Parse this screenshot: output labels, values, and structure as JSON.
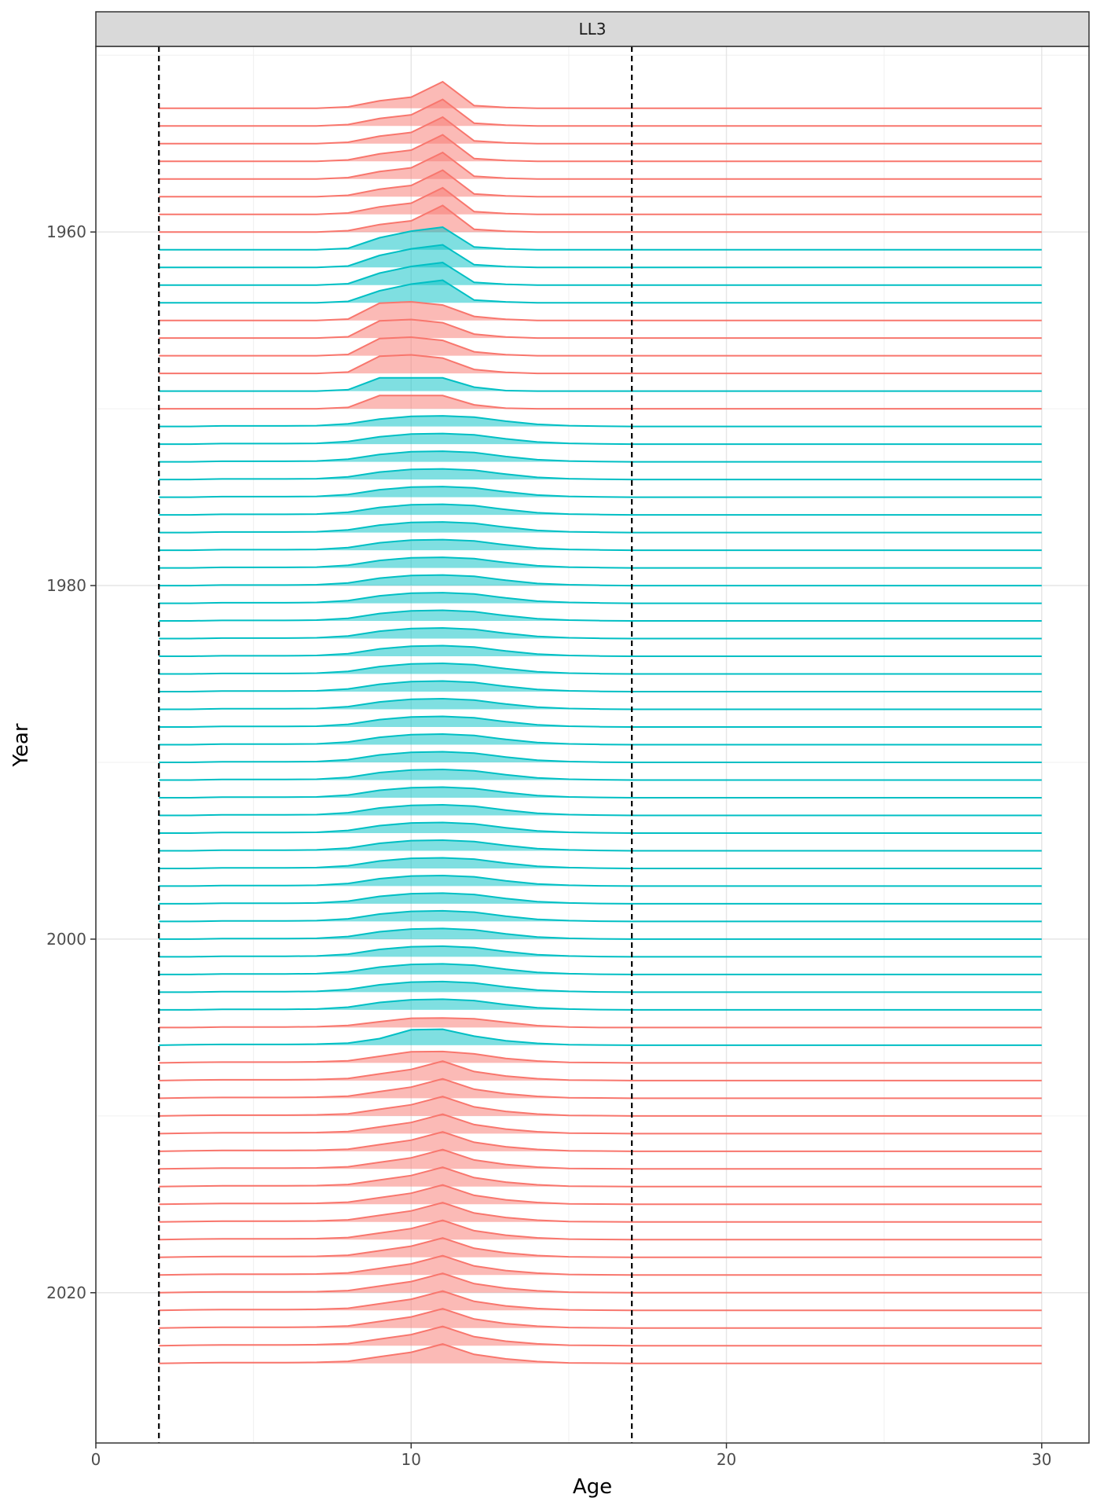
{
  "chart_data": {
    "type": "area",
    "facet_label": "LL3",
    "xlabel": "Age",
    "ylabel": "Year",
    "xlim": [
      0,
      31.5
    ],
    "ylim": [
      1949.5,
      2028.5
    ],
    "x_ticks": [
      "0",
      "10",
      "20",
      "30"
    ],
    "y_ticks": [
      "1960",
      "1980",
      "2000",
      "2020"
    ],
    "reference_lines_x": [
      2,
      17
    ],
    "grid": true,
    "legend": "none",
    "colors": {
      "red": "#F8766D",
      "cyan": "#00BFC4"
    },
    "ages": [
      2,
      3,
      4,
      5,
      6,
      7,
      8,
      9,
      10,
      11,
      12,
      13,
      14,
      15,
      16,
      17,
      18,
      19,
      20,
      21,
      22,
      23,
      24,
      25,
      26,
      27,
      28,
      29,
      30
    ],
    "ridge_scale_years": 1.5,
    "profiles": {
      "A": [
        0,
        0,
        0,
        0,
        0,
        0,
        0.05,
        0.28,
        0.42,
        1.0,
        0.1,
        0.03,
        0,
        0,
        0,
        0,
        0,
        0,
        0,
        0,
        0,
        0,
        0,
        0,
        0,
        0,
        0,
        0,
        0
      ],
      "B": [
        0,
        0,
        0,
        0,
        0,
        0,
        0.05,
        0.45,
        0.7,
        0.85,
        0.1,
        0.03,
        0,
        0,
        0,
        0,
        0,
        0,
        0,
        0,
        0,
        0,
        0,
        0,
        0,
        0,
        0,
        0,
        0
      ],
      "C": [
        0,
        0,
        0,
        0,
        0,
        0,
        0.05,
        0.65,
        0.7,
        0.58,
        0.15,
        0.04,
        0,
        0,
        0,
        0,
        0,
        0,
        0,
        0,
        0,
        0,
        0,
        0,
        0,
        0,
        0,
        0,
        0
      ],
      "D": [
        0,
        0,
        0,
        0,
        0,
        0,
        0.05,
        0.5,
        0.5,
        0.5,
        0.15,
        0.02,
        0,
        0,
        0,
        0,
        0,
        0,
        0,
        0,
        0,
        0,
        0,
        0,
        0,
        0,
        0,
        0,
        0
      ],
      "E": [
        0,
        0,
        0.02,
        0.02,
        0.02,
        0.03,
        0.1,
        0.28,
        0.38,
        0.4,
        0.35,
        0.2,
        0.08,
        0.03,
        0.01,
        0,
        0,
        0,
        0,
        0,
        0,
        0,
        0,
        0,
        0,
        0,
        0,
        0,
        0
      ],
      "F": [
        0,
        0,
        0.02,
        0.02,
        0.02,
        0.03,
        0.08,
        0.22,
        0.35,
        0.36,
        0.33,
        0.2,
        0.07,
        0.02,
        0,
        0,
        0,
        0,
        0,
        0,
        0,
        0,
        0,
        0,
        0,
        0,
        0,
        0,
        0
      ],
      "G": [
        0,
        0.02,
        0.03,
        0.03,
        0.03,
        0.04,
        0.08,
        0.25,
        0.58,
        0.6,
        0.34,
        0.17,
        0.07,
        0.02,
        0.01,
        0,
        0,
        0,
        0,
        0,
        0,
        0,
        0,
        0,
        0,
        0,
        0,
        0,
        0
      ],
      "H": [
        0,
        0.02,
        0.03,
        0.03,
        0.03,
        0.04,
        0.08,
        0.25,
        0.42,
        0.43,
        0.34,
        0.17,
        0.07,
        0.02,
        0.01,
        0,
        0,
        0,
        0,
        0,
        0,
        0,
        0,
        0,
        0,
        0,
        0,
        0,
        0
      ],
      "I": [
        0,
        0.02,
        0.03,
        0.03,
        0.03,
        0.04,
        0.08,
        0.25,
        0.42,
        0.73,
        0.34,
        0.17,
        0.07,
        0.02,
        0.01,
        0,
        0,
        0,
        0,
        0,
        0,
        0,
        0,
        0,
        0,
        0,
        0,
        0,
        0
      ]
    },
    "series": [
      {
        "year": 1953,
        "color": "red",
        "profile": "A"
      },
      {
        "year": 1954,
        "color": "red",
        "profile": "A"
      },
      {
        "year": 1955,
        "color": "red",
        "profile": "A"
      },
      {
        "year": 1956,
        "color": "red",
        "profile": "A"
      },
      {
        "year": 1957,
        "color": "red",
        "profile": "A"
      },
      {
        "year": 1958,
        "color": "red",
        "profile": "A"
      },
      {
        "year": 1959,
        "color": "red",
        "profile": "A"
      },
      {
        "year": 1960,
        "color": "red",
        "profile": "A"
      },
      {
        "year": 1961,
        "color": "cyan",
        "profile": "B"
      },
      {
        "year": 1962,
        "color": "cyan",
        "profile": "B"
      },
      {
        "year": 1963,
        "color": "cyan",
        "profile": "B"
      },
      {
        "year": 1964,
        "color": "cyan",
        "profile": "B"
      },
      {
        "year": 1965,
        "color": "red",
        "profile": "C"
      },
      {
        "year": 1966,
        "color": "red",
        "profile": "C"
      },
      {
        "year": 1967,
        "color": "red",
        "profile": "C"
      },
      {
        "year": 1968,
        "color": "red",
        "profile": "C"
      },
      {
        "year": 1969,
        "color": "cyan",
        "profile": "D"
      },
      {
        "year": 1970,
        "color": "red",
        "profile": "D"
      },
      {
        "year": 1971,
        "color": "cyan",
        "profile": "E"
      },
      {
        "year": 1972,
        "color": "cyan",
        "profile": "E"
      },
      {
        "year": 1973,
        "color": "cyan",
        "profile": "E"
      },
      {
        "year": 1974,
        "color": "cyan",
        "profile": "E"
      },
      {
        "year": 1975,
        "color": "cyan",
        "profile": "E"
      },
      {
        "year": 1976,
        "color": "cyan",
        "profile": "E"
      },
      {
        "year": 1977,
        "color": "cyan",
        "profile": "E"
      },
      {
        "year": 1978,
        "color": "cyan",
        "profile": "E"
      },
      {
        "year": 1979,
        "color": "cyan",
        "profile": "E"
      },
      {
        "year": 1980,
        "color": "cyan",
        "profile": "E"
      },
      {
        "year": 1981,
        "color": "cyan",
        "profile": "E"
      },
      {
        "year": 1982,
        "color": "cyan",
        "profile": "E"
      },
      {
        "year": 1983,
        "color": "cyan",
        "profile": "E"
      },
      {
        "year": 1984,
        "color": "cyan",
        "profile": "E"
      },
      {
        "year": 1985,
        "color": "cyan",
        "profile": "E"
      },
      {
        "year": 1986,
        "color": "cyan",
        "profile": "E"
      },
      {
        "year": 1987,
        "color": "cyan",
        "profile": "E"
      },
      {
        "year": 1988,
        "color": "cyan",
        "profile": "E"
      },
      {
        "year": 1989,
        "color": "cyan",
        "profile": "E"
      },
      {
        "year": 1990,
        "color": "cyan",
        "profile": "E"
      },
      {
        "year": 1991,
        "color": "cyan",
        "profile": "E"
      },
      {
        "year": 1992,
        "color": "cyan",
        "profile": "E"
      },
      {
        "year": 1993,
        "color": "cyan",
        "profile": "E"
      },
      {
        "year": 1994,
        "color": "cyan",
        "profile": "E"
      },
      {
        "year": 1995,
        "color": "cyan",
        "profile": "E"
      },
      {
        "year": 1996,
        "color": "cyan",
        "profile": "E"
      },
      {
        "year": 1997,
        "color": "cyan",
        "profile": "E"
      },
      {
        "year": 1998,
        "color": "cyan",
        "profile": "E"
      },
      {
        "year": 1999,
        "color": "cyan",
        "profile": "E"
      },
      {
        "year": 2000,
        "color": "cyan",
        "profile": "E"
      },
      {
        "year": 2001,
        "color": "cyan",
        "profile": "E"
      },
      {
        "year": 2002,
        "color": "cyan",
        "profile": "E"
      },
      {
        "year": 2003,
        "color": "cyan",
        "profile": "E"
      },
      {
        "year": 2004,
        "color": "cyan",
        "profile": "E"
      },
      {
        "year": 2005,
        "color": "red",
        "profile": "F"
      },
      {
        "year": 2006,
        "color": "cyan",
        "profile": "G"
      },
      {
        "year": 2007,
        "color": "red",
        "profile": "H"
      },
      {
        "year": 2008,
        "color": "red",
        "profile": "I"
      },
      {
        "year": 2009,
        "color": "red",
        "profile": "I"
      },
      {
        "year": 2010,
        "color": "red",
        "profile": "I"
      },
      {
        "year": 2011,
        "color": "red",
        "profile": "I"
      },
      {
        "year": 2012,
        "color": "red",
        "profile": "I"
      },
      {
        "year": 2013,
        "color": "red",
        "profile": "I"
      },
      {
        "year": 2014,
        "color": "red",
        "profile": "I"
      },
      {
        "year": 2015,
        "color": "red",
        "profile": "I"
      },
      {
        "year": 2016,
        "color": "red",
        "profile": "I"
      },
      {
        "year": 2017,
        "color": "red",
        "profile": "I"
      },
      {
        "year": 2018,
        "color": "red",
        "profile": "I"
      },
      {
        "year": 2019,
        "color": "red",
        "profile": "I"
      },
      {
        "year": 2020,
        "color": "red",
        "profile": "I"
      },
      {
        "year": 2021,
        "color": "red",
        "profile": "I"
      },
      {
        "year": 2022,
        "color": "red",
        "profile": "I"
      },
      {
        "year": 2023,
        "color": "red",
        "profile": "I"
      },
      {
        "year": 2024,
        "color": "red",
        "profile": "I"
      }
    ]
  }
}
